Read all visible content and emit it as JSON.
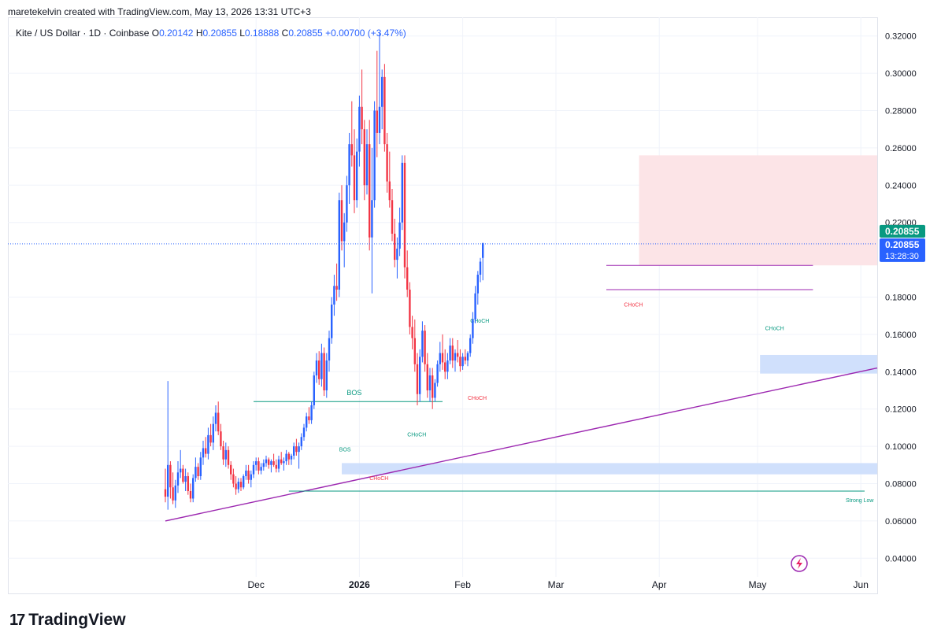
{
  "header": {
    "author_line": "maretekelvin created with TradingView.com, May 13, 2026 13:31 UTC+3"
  },
  "legend": {
    "symbol": "Kite / US Dollar · 1D · Coinbase",
    "o_label": "O",
    "o": "0.20142",
    "h_label": "H",
    "h": "0.20855",
    "l_label": "L",
    "l": "0.18888",
    "c_label": "C",
    "c": "0.20855",
    "change": "+0.00700 (+3.47%)"
  },
  "footer": {
    "brand": "TradingView",
    "logo_mark": "17"
  },
  "colors": {
    "up": "#2962ff",
    "down": "#f23645",
    "trendline": "#9c27b0",
    "bos": "#089981",
    "supply_zone": "#fce4e7",
    "demand_zone": "#c8dafc",
    "last_price_badge": "#089981",
    "countdown_badge": "#2962ff"
  },
  "chart_data": {
    "type": "candlestick",
    "yaxis": {
      "ticks": [
        "0.32000",
        "0.30000",
        "0.28000",
        "0.26000",
        "0.24000",
        "0.22000",
        "0.18000",
        "0.16000",
        "0.14000",
        "0.12000",
        "0.10000",
        "0.08000",
        "0.06000",
        "0.04000"
      ],
      "range": [
        0.03,
        0.33
      ]
    },
    "xaxis": {
      "ticks": [
        "Dec",
        "2026",
        "Feb",
        "Mar",
        "Apr",
        "May",
        "Jun"
      ]
    },
    "price_badges": {
      "last_price": "0.20855",
      "current_price": "0.20855",
      "countdown": "13:28:30"
    },
    "annotations": [
      {
        "text": "BOS",
        "kind": "bos",
        "value": 0.124
      },
      {
        "text": "BOS",
        "kind": "bos",
        "value": 0.094
      },
      {
        "text": "CHoCH",
        "kind": "choch",
        "value": 0.102
      },
      {
        "text": "CHoCH",
        "kind": "choch",
        "value": 0.163
      },
      {
        "text": "CHoCH",
        "kind": "choch",
        "value": 0.13
      },
      {
        "text": "CHoCH",
        "kind": "choch",
        "value": 0.087
      },
      {
        "text": "CHoCH",
        "kind": "choch",
        "value": 0.18
      },
      {
        "text": "CHoCH",
        "kind": "choch",
        "value": 0.159
      },
      {
        "text": "Strong Low",
        "kind": "level",
        "value": 0.076
      }
    ],
    "zones": [
      {
        "name": "supply",
        "low": 0.197,
        "high": 0.256
      },
      {
        "name": "demand-upper",
        "low": 0.139,
        "high": 0.149
      },
      {
        "name": "demand-lower",
        "low": 0.085,
        "high": 0.091
      }
    ],
    "levels": [
      0.197,
      0.184
    ],
    "trendline": [
      [
        0,
        0.06
      ],
      [
        1,
        0.142
      ]
    ],
    "candles": [
      [
        0.077,
        0.088,
        0.07,
        0.073
      ],
      [
        0.073,
        0.135,
        0.066,
        0.09
      ],
      [
        0.09,
        0.092,
        0.072,
        0.078
      ],
      [
        0.078,
        0.086,
        0.069,
        0.071
      ],
      [
        0.071,
        0.082,
        0.067,
        0.079
      ],
      [
        0.079,
        0.092,
        0.075,
        0.086
      ],
      [
        0.086,
        0.098,
        0.083,
        0.088
      ],
      [
        0.088,
        0.09,
        0.08,
        0.081
      ],
      [
        0.081,
        0.088,
        0.076,
        0.084
      ],
      [
        0.084,
        0.086,
        0.074,
        0.076
      ],
      [
        0.076,
        0.08,
        0.07,
        0.072
      ],
      [
        0.072,
        0.085,
        0.07,
        0.083
      ],
      [
        0.083,
        0.094,
        0.081,
        0.089
      ],
      [
        0.089,
        0.091,
        0.082,
        0.084
      ],
      [
        0.084,
        0.097,
        0.082,
        0.094
      ],
      [
        0.094,
        0.103,
        0.09,
        0.099
      ],
      [
        0.099,
        0.105,
        0.094,
        0.096
      ],
      [
        0.096,
        0.11,
        0.093,
        0.106
      ],
      [
        0.106,
        0.112,
        0.1,
        0.102
      ],
      [
        0.102,
        0.116,
        0.098,
        0.112
      ],
      [
        0.112,
        0.122,
        0.108,
        0.118
      ],
      [
        0.118,
        0.124,
        0.106,
        0.108
      ],
      [
        0.108,
        0.112,
        0.098,
        0.1
      ],
      [
        0.1,
        0.103,
        0.09,
        0.093
      ],
      [
        0.093,
        0.102,
        0.089,
        0.098
      ],
      [
        0.098,
        0.1,
        0.088,
        0.09
      ],
      [
        0.09,
        0.092,
        0.082,
        0.085
      ],
      [
        0.085,
        0.088,
        0.078,
        0.08
      ],
      [
        0.08,
        0.084,
        0.074,
        0.077
      ],
      [
        0.077,
        0.083,
        0.075,
        0.081
      ],
      [
        0.081,
        0.083,
        0.076,
        0.078
      ],
      [
        0.078,
        0.085,
        0.077,
        0.084
      ],
      [
        0.084,
        0.09,
        0.082,
        0.087
      ],
      [
        0.087,
        0.09,
        0.08,
        0.082
      ],
      [
        0.082,
        0.087,
        0.078,
        0.085
      ],
      [
        0.085,
        0.092,
        0.083,
        0.09
      ],
      [
        0.09,
        0.094,
        0.087,
        0.092
      ],
      [
        0.092,
        0.094,
        0.085,
        0.087
      ],
      [
        0.087,
        0.091,
        0.085,
        0.089
      ],
      [
        0.089,
        0.093,
        0.087,
        0.091
      ],
      [
        0.091,
        0.095,
        0.089,
        0.093
      ],
      [
        0.093,
        0.094,
        0.088,
        0.09
      ],
      [
        0.09,
        0.093,
        0.086,
        0.092
      ],
      [
        0.092,
        0.096,
        0.089,
        0.09
      ],
      [
        0.09,
        0.093,
        0.086,
        0.088
      ],
      [
        0.088,
        0.095,
        0.086,
        0.093
      ],
      [
        0.093,
        0.097,
        0.09,
        0.091
      ],
      [
        0.091,
        0.094,
        0.087,
        0.092
      ],
      [
        0.092,
        0.098,
        0.09,
        0.096
      ],
      [
        0.096,
        0.097,
        0.09,
        0.093
      ],
      [
        0.093,
        0.096,
        0.09,
        0.095
      ],
      [
        0.095,
        0.102,
        0.093,
        0.1
      ],
      [
        0.1,
        0.104,
        0.095,
        0.097
      ],
      [
        0.097,
        0.102,
        0.088,
        0.1
      ],
      [
        0.1,
        0.107,
        0.098,
        0.105
      ],
      [
        0.105,
        0.112,
        0.103,
        0.11
      ],
      [
        0.11,
        0.118,
        0.108,
        0.116
      ],
      [
        0.116,
        0.121,
        0.112,
        0.114
      ],
      [
        0.114,
        0.124,
        0.112,
        0.122
      ],
      [
        0.122,
        0.14,
        0.12,
        0.138
      ],
      [
        0.138,
        0.15,
        0.134,
        0.146
      ],
      [
        0.146,
        0.151,
        0.133,
        0.136
      ],
      [
        0.136,
        0.155,
        0.132,
        0.15
      ],
      [
        0.15,
        0.153,
        0.127,
        0.13
      ],
      [
        0.13,
        0.15,
        0.126,
        0.146
      ],
      [
        0.146,
        0.162,
        0.14,
        0.158
      ],
      [
        0.158,
        0.18,
        0.155,
        0.176
      ],
      [
        0.176,
        0.192,
        0.17,
        0.186
      ],
      [
        0.186,
        0.198,
        0.178,
        0.184
      ],
      [
        0.184,
        0.236,
        0.18,
        0.232
      ],
      [
        0.232,
        0.24,
        0.205,
        0.21
      ],
      [
        0.21,
        0.225,
        0.196,
        0.22
      ],
      [
        0.22,
        0.245,
        0.215,
        0.24
      ],
      [
        0.24,
        0.268,
        0.23,
        0.262
      ],
      [
        0.262,
        0.285,
        0.25,
        0.256
      ],
      [
        0.256,
        0.27,
        0.225,
        0.232
      ],
      [
        0.232,
        0.265,
        0.228,
        0.258
      ],
      [
        0.258,
        0.288,
        0.25,
        0.282
      ],
      [
        0.282,
        0.302,
        0.262,
        0.27
      ],
      [
        0.27,
        0.275,
        0.232,
        0.24
      ],
      [
        0.24,
        0.27,
        0.235,
        0.262
      ],
      [
        0.262,
        0.275,
        0.205,
        0.212
      ],
      [
        0.212,
        0.26,
        0.182,
        0.232
      ],
      [
        0.232,
        0.285,
        0.228,
        0.28
      ],
      [
        0.28,
        0.312,
        0.255,
        0.268
      ],
      [
        0.268,
        0.322,
        0.262,
        0.282
      ],
      [
        0.282,
        0.302,
        0.27,
        0.298
      ],
      [
        0.298,
        0.305,
        0.258,
        0.262
      ],
      [
        0.262,
        0.268,
        0.236,
        0.242
      ],
      [
        0.242,
        0.258,
        0.228,
        0.232
      ],
      [
        0.232,
        0.238,
        0.21,
        0.214
      ],
      [
        0.214,
        0.222,
        0.196,
        0.2
      ],
      [
        0.2,
        0.212,
        0.19,
        0.206
      ],
      [
        0.206,
        0.228,
        0.202,
        0.22
      ],
      [
        0.22,
        0.256,
        0.216,
        0.252
      ],
      [
        0.252,
        0.256,
        0.19,
        0.196
      ],
      [
        0.196,
        0.205,
        0.18,
        0.184
      ],
      [
        0.184,
        0.188,
        0.16,
        0.164
      ],
      [
        0.164,
        0.17,
        0.152,
        0.158
      ],
      [
        0.158,
        0.168,
        0.14,
        0.144
      ],
      [
        0.144,
        0.15,
        0.122,
        0.128
      ],
      [
        0.128,
        0.152,
        0.124,
        0.148
      ],
      [
        0.148,
        0.167,
        0.145,
        0.162
      ],
      [
        0.162,
        0.165,
        0.14,
        0.144
      ],
      [
        0.144,
        0.15,
        0.126,
        0.13
      ],
      [
        0.13,
        0.142,
        0.124,
        0.138
      ],
      [
        0.138,
        0.142,
        0.12,
        0.126
      ],
      [
        0.126,
        0.136,
        0.124,
        0.134
      ],
      [
        0.134,
        0.146,
        0.132,
        0.144
      ],
      [
        0.144,
        0.156,
        0.14,
        0.15
      ],
      [
        0.15,
        0.16,
        0.141,
        0.145
      ],
      [
        0.145,
        0.152,
        0.136,
        0.14
      ],
      [
        0.14,
        0.15,
        0.136,
        0.146
      ],
      [
        0.146,
        0.158,
        0.144,
        0.154
      ],
      [
        0.154,
        0.158,
        0.142,
        0.146
      ],
      [
        0.146,
        0.152,
        0.14,
        0.15
      ],
      [
        0.15,
        0.157,
        0.145,
        0.148
      ],
      [
        0.148,
        0.152,
        0.14,
        0.143
      ],
      [
        0.143,
        0.15,
        0.141,
        0.148
      ],
      [
        0.148,
        0.152,
        0.144,
        0.146
      ],
      [
        0.146,
        0.151,
        0.143,
        0.15
      ],
      [
        0.15,
        0.16,
        0.148,
        0.158
      ],
      [
        0.158,
        0.172,
        0.155,
        0.168
      ],
      [
        0.168,
        0.186,
        0.166,
        0.182
      ],
      [
        0.182,
        0.194,
        0.176,
        0.192
      ],
      [
        0.192,
        0.201,
        0.188,
        0.199
      ],
      [
        0.201,
        0.209,
        0.189,
        0.209
      ]
    ]
  }
}
